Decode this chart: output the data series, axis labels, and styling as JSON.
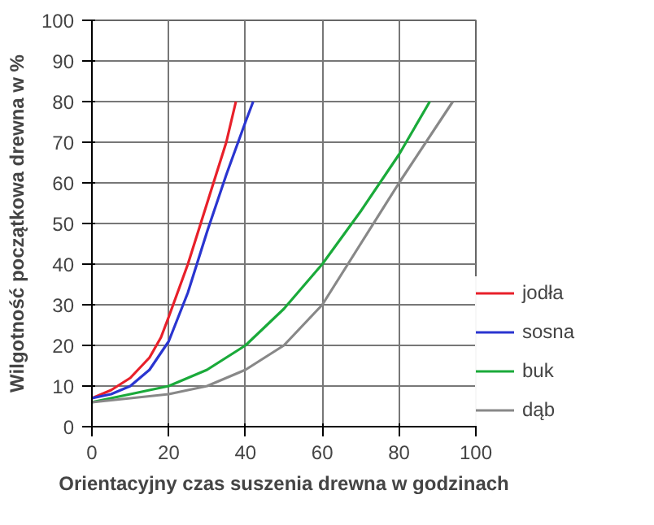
{
  "chart_data": {
    "type": "line",
    "xlabel": "Orientacyjny czas suszenia drewna w godzinach",
    "ylabel": "Wilgotność początkowa drewna w %",
    "xlim": [
      0,
      100
    ],
    "ylim": [
      0,
      100
    ],
    "xticks": [
      0,
      20,
      40,
      60,
      80,
      100
    ],
    "yticks": [
      0,
      10,
      20,
      30,
      40,
      50,
      60,
      70,
      80,
      90,
      100
    ],
    "grid": true,
    "legend": "bottom right",
    "marker": "none",
    "line_style": "solid",
    "series": [
      {
        "name": "jodła",
        "color": "#e8202a",
        "x": [
          0,
          5,
          10,
          15,
          18,
          20,
          25,
          30,
          35,
          37.5
        ],
        "values": [
          7,
          9,
          12,
          17,
          22,
          27,
          40,
          55,
          70,
          80
        ]
      },
      {
        "name": "sosna",
        "color": "#2a35d0",
        "x": [
          0,
          5,
          10,
          15,
          20,
          25,
          30,
          35,
          40,
          42
        ],
        "values": [
          7,
          8,
          10,
          14,
          21,
          33,
          48,
          62,
          75,
          80
        ]
      },
      {
        "name": "buk",
        "color": "#1aaa3a",
        "x": [
          0,
          10,
          20,
          30,
          40,
          50,
          60,
          70,
          80,
          88
        ],
        "values": [
          6,
          8,
          10,
          14,
          20,
          29,
          40,
          53,
          67,
          80
        ]
      },
      {
        "name": "dąb",
        "color": "#888888",
        "x": [
          0,
          10,
          20,
          30,
          40,
          50,
          55,
          60,
          70,
          80,
          94
        ],
        "values": [
          6,
          7,
          8,
          10,
          14,
          20,
          25,
          30,
          45,
          60,
          80
        ]
      }
    ]
  }
}
